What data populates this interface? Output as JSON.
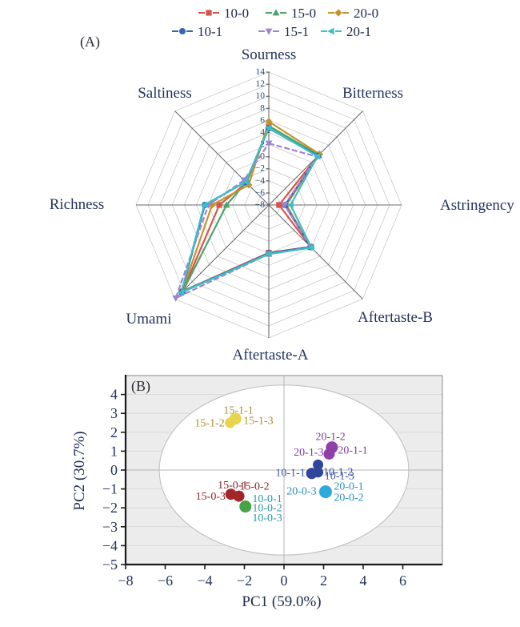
{
  "chart_data": [
    {
      "type": "radar",
      "panel_label": "(A)",
      "axes": [
        "Sourness",
        "Bitterness",
        "Astringency",
        "Aftertaste-B",
        "Aftertaste-A",
        "Umami",
        "Richness",
        "Saltiness"
      ],
      "scale": {
        "min": -8,
        "max": 14,
        "step": 2,
        "tick_labels": [
          14,
          12,
          10,
          8,
          6,
          4,
          2,
          0,
          -2,
          -4,
          -6,
          -8
        ]
      },
      "grid_color": "#c9c9c9",
      "spoke_color": "#6a6a6a",
      "tick_text_color": "#2c4a78",
      "axis_label_color": "#22335c",
      "series": [
        {
          "name": "10-0",
          "color": "#d9534a",
          "marker": "square",
          "line": "solid",
          "values": [
            5.0,
            3.6,
            -6.3,
            1.8,
            -0.1,
            12.2,
            0.2,
            -2.8
          ]
        },
        {
          "name": "15-0",
          "color": "#4ba36c",
          "marker": "triangle-up",
          "line": "solid",
          "values": [
            5.1,
            3.7,
            -5.2,
            1.9,
            0.1,
            12.1,
            -1.0,
            -2.7
          ]
        },
        {
          "name": "20-0",
          "color": "#c3932e",
          "marker": "diamond",
          "line": "solid",
          "values": [
            5.8,
            3.9,
            -5.1,
            1.9,
            0.1,
            12.3,
            1.4,
            -3.3
          ]
        },
        {
          "name": "10-1",
          "color": "#3566af",
          "marker": "circle",
          "line": "solid",
          "values": [
            4.7,
            3.5,
            -5.3,
            1.8,
            0.0,
            12.4,
            2.6,
            -2.6
          ]
        },
        {
          "name": "15-1",
          "color": "#a084d4",
          "marker": "triangle-down",
          "line": "dashed",
          "values": [
            2.2,
            3.3,
            -5.4,
            1.9,
            0.1,
            13.8,
            2.0,
            -2.2
          ]
        },
        {
          "name": "20-1",
          "color": "#3abfc6",
          "marker": "triangle-left",
          "line": "solid",
          "values": [
            4.8,
            3.4,
            -4.4,
            2.0,
            0.1,
            12.5,
            2.7,
            -2.6
          ]
        }
      ]
    },
    {
      "type": "scatter",
      "panel_label": "(B)",
      "xlabel": "PC1 (59.0%)",
      "ylabel": "PC2 (30.7%)",
      "xlim": [
        -8,
        8
      ],
      "ylim": [
        -5,
        5
      ],
      "xticks": [
        -8,
        -6,
        -4,
        -2,
        0,
        2,
        4,
        6
      ],
      "yticks": [
        4,
        3,
        2,
        1,
        0,
        -1,
        -2,
        -3,
        -4,
        -5
      ],
      "plot_bg": "#ececec",
      "gridline_color": "#d9d9d9",
      "zero_line_color": "#b5b5b5",
      "tick_text_color": "#22335c",
      "ellipse": {
        "cx": 0,
        "cy": 0,
        "rx": 6.3,
        "ry": 4.5,
        "fill": "#ffffff",
        "stroke": "#c4c4c4"
      },
      "groups": [
        {
          "name": "15-1",
          "dot_color": "#e9d44e",
          "label_color": "#a5912c",
          "points": [
            {
              "x": -2.45,
              "y": 2.72,
              "r": 7.5
            },
            {
              "x": -2.72,
              "y": 2.5,
              "r": 6.5
            }
          ],
          "labels": [
            {
              "text": "15-1-1",
              "x": -2.3,
              "y": 3.18,
              "anchor": "middle"
            },
            {
              "text": "15-1-2",
              "x": -3.0,
              "y": 2.5,
              "anchor": "end"
            },
            {
              "text": "15-1-3",
              "x": -2.05,
              "y": 2.62,
              "anchor": "start"
            }
          ]
        },
        {
          "name": "20-1",
          "dot_color": "#8f3fa8",
          "label_color": "#7b3b9e",
          "points": [
            {
              "x": 2.42,
              "y": 1.2,
              "r": 7.5
            },
            {
              "x": 2.28,
              "y": 0.85,
              "r": 7
            }
          ],
          "labels": [
            {
              "text": "20-1-2",
              "x": 2.35,
              "y": 1.78,
              "anchor": "middle"
            },
            {
              "text": "20-1-3",
              "x": 2.0,
              "y": 0.95,
              "anchor": "end"
            },
            {
              "text": "20-1-1",
              "x": 2.72,
              "y": 1.05,
              "anchor": "start"
            }
          ]
        },
        {
          "name": "10-1",
          "dot_color": "#30459c",
          "label_color": "#3d51a5",
          "points": [
            {
              "x": 1.72,
              "y": 0.28,
              "r": 6.5
            },
            {
              "x": 1.4,
              "y": -0.18,
              "r": 7
            },
            {
              "x": 1.72,
              "y": -0.12,
              "r": 6.5
            }
          ],
          "labels": [
            {
              "text": "10-1-1",
              "x": 1.08,
              "y": -0.12,
              "anchor": "end"
            },
            {
              "text": "10-1-2",
              "x": 1.98,
              "y": -0.08,
              "anchor": "start"
            },
            {
              "text": "10-1-3",
              "x": 2.05,
              "y": -0.3,
              "anchor": "start"
            }
          ]
        },
        {
          "name": "20-0",
          "dot_color": "#2ea9dc",
          "label_color": "#2d8fc4",
          "points": [
            {
              "x": 2.1,
              "y": -1.15,
              "r": 8
            }
          ],
          "labels": [
            {
              "text": "20-0-3",
              "x": 1.64,
              "y": -1.1,
              "anchor": "end"
            },
            {
              "text": "20-0-1",
              "x": 2.52,
              "y": -0.85,
              "anchor": "start"
            },
            {
              "text": "20-0-2",
              "x": 2.52,
              "y": -1.44,
              "anchor": "start"
            }
          ]
        },
        {
          "name": "15-0",
          "dot_color": "#a1272b",
          "label_color": "#8e2226",
          "points": [
            {
              "x": -2.68,
              "y": -1.28,
              "r": 7
            },
            {
              "x": -2.28,
              "y": -1.38,
              "r": 7
            }
          ],
          "labels": [
            {
              "text": "15-0-1",
              "x": -3.35,
              "y": -0.78,
              "anchor": "start"
            },
            {
              "text": "15-0-2",
              "x": -2.25,
              "y": -0.85,
              "anchor": "start"
            },
            {
              "text": "15-0-3",
              "x": -2.95,
              "y": -1.38,
              "anchor": "end"
            }
          ]
        },
        {
          "name": "10-0",
          "dot_color": "#46a348",
          "label_color": "#2d97ab",
          "points": [
            {
              "x": -1.95,
              "y": -1.93,
              "r": 7.5
            }
          ],
          "labels": [
            {
              "text": "10-0-1",
              "x": -1.6,
              "y": -1.5,
              "anchor": "start"
            },
            {
              "text": "10-0-2",
              "x": -1.6,
              "y": -2.0,
              "anchor": "start"
            },
            {
              "text": "10-0-3",
              "x": -1.6,
              "y": -2.52,
              "anchor": "start"
            }
          ]
        }
      ]
    }
  ]
}
